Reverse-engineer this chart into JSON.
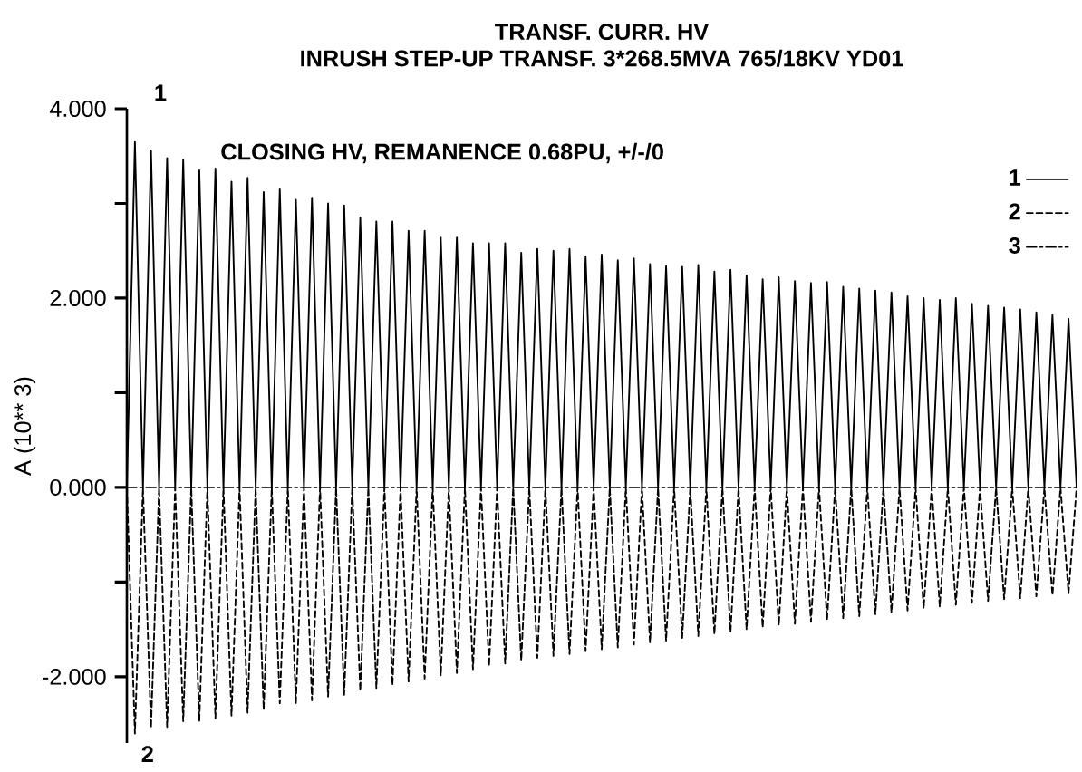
{
  "chart_data": {
    "type": "line",
    "title": "TRANSF. CURR. HV",
    "subtitle": "INRUSH STEP-UP TRANSF. 3*268.5MVA 765/18KV YD01",
    "ylabel": "A (10** 3)",
    "annotations": [
      "1",
      "CLOSING HV, REMANENCE 0.68PU, +/-/0",
      "2"
    ],
    "categories": [
      null,
      null,
      null,
      null,
      null,
      null,
      null,
      null,
      null,
      null,
      null,
      null,
      null,
      null,
      null,
      null,
      null,
      null,
      null,
      null,
      null,
      null,
      null,
      null,
      null,
      null,
      null,
      null,
      null,
      null,
      null,
      null,
      null,
      null,
      null,
      null,
      null,
      null,
      null,
      null,
      null,
      null,
      null,
      null,
      null,
      null,
      null,
      null,
      null,
      null,
      null,
      null,
      null,
      null,
      null,
      null,
      null,
      null,
      null,
      null,
      null,
      null,
      null,
      null,
      null,
      null,
      null,
      null,
      null,
      null,
      null,
      null,
      null,
      null,
      null,
      null,
      null,
      null,
      null,
      null,
      null,
      null,
      null,
      null,
      null,
      null,
      null,
      null,
      null,
      null,
      null,
      null,
      null,
      null,
      null,
      null,
      null,
      null,
      null,
      null,
      null,
      null,
      null,
      null,
      null,
      null,
      null,
      null,
      null,
      null,
      null,
      null,
      null,
      null,
      null,
      null,
      null,
      null,
      null
    ],
    "series": [
      {
        "name": "1",
        "color": "#000000",
        "line_style": "solid",
        "values": [
          0,
          3.65,
          0,
          3.56,
          0,
          3.48,
          0,
          3.46,
          0,
          3.35,
          0,
          3.37,
          0,
          3.23,
          0,
          3.27,
          0,
          3.12,
          0,
          3.15,
          0,
          3.04,
          0,
          3.06,
          0,
          3.0,
          0,
          2.98,
          0,
          2.85,
          0,
          2.81,
          0,
          2.81,
          0,
          2.71,
          0,
          2.71,
          0,
          2.64,
          0,
          2.64,
          0,
          2.58,
          0,
          2.58,
          0,
          2.58,
          0,
          2.48,
          0,
          2.52,
          0,
          2.5,
          0,
          2.52,
          0,
          2.44,
          0,
          2.46,
          0,
          2.4,
          0,
          2.42,
          0,
          2.36,
          0,
          2.34,
          0,
          2.33,
          0,
          2.35,
          0,
          2.28,
          0,
          2.3,
          0,
          2.24,
          0,
          2.2,
          0,
          2.22,
          0,
          2.18,
          0,
          2.16,
          0,
          2.17,
          0,
          2.12,
          0,
          2.1,
          0,
          2.08,
          0,
          2.06,
          0,
          2.02,
          0,
          2.0,
          0,
          1.98,
          0,
          2.0,
          0,
          1.94,
          0,
          1.92,
          0,
          1.9,
          0,
          1.88,
          0,
          1.85,
          0,
          1.82,
          0,
          1.78,
          0
        ]
      },
      {
        "name": "2",
        "color": "#000000",
        "line_style": "dashed",
        "values": [
          0,
          -2.6,
          0,
          -2.54,
          0,
          -2.53,
          0,
          -2.47,
          0,
          -2.47,
          0,
          -2.44,
          0,
          -2.41,
          0,
          -2.38,
          0,
          -2.35,
          0,
          -2.28,
          0,
          -2.28,
          0,
          -2.25,
          0,
          -2.21,
          0,
          -2.19,
          0,
          -2.15,
          0,
          -2.12,
          0,
          -2.09,
          0,
          -2.05,
          0,
          -2.02,
          0,
          -1.99,
          0,
          -1.96,
          0,
          -1.92,
          0,
          -1.89,
          0,
          -1.86,
          0,
          -1.83,
          0,
          -1.8,
          0,
          -1.78,
          0,
          -1.76,
          0,
          -1.73,
          0,
          -1.71,
          0,
          -1.69,
          0,
          -1.66,
          0,
          -1.64,
          0,
          -1.62,
          0,
          -1.59,
          0,
          -1.57,
          0,
          -1.55,
          0,
          -1.53,
          0,
          -1.5,
          0,
          -1.48,
          0,
          -1.46,
          0,
          -1.44,
          0,
          -1.42,
          0,
          -1.4,
          0,
          -1.38,
          0,
          -1.36,
          0,
          -1.34,
          0,
          -1.32,
          0,
          -1.3,
          0,
          -1.28,
          0,
          -1.26,
          0,
          -1.24,
          0,
          -1.22,
          0,
          -1.2,
          0,
          -1.18,
          0,
          -1.17,
          0,
          -1.15,
          0,
          -1.14,
          0,
          -1.12,
          0
        ]
      },
      {
        "name": "3",
        "color": "#000000",
        "line_style": "dashdot",
        "values": [
          0,
          0,
          0,
          0,
          0,
          0,
          0,
          0,
          0,
          0,
          0,
          0,
          0,
          0,
          0,
          0,
          0,
          0,
          0,
          0,
          0,
          0,
          0,
          0,
          0,
          0,
          0,
          0,
          0,
          0,
          0,
          0,
          0,
          0,
          0,
          0,
          0,
          0,
          0,
          0,
          0,
          0,
          0,
          0,
          0,
          0,
          0,
          0,
          0,
          0,
          0,
          0,
          0,
          0,
          0,
          0,
          0,
          0,
          0,
          0,
          0,
          0,
          0,
          0,
          0,
          0,
          0,
          0,
          0,
          0,
          0,
          0,
          0,
          0,
          0,
          0,
          0,
          0,
          0,
          0,
          0,
          0,
          0,
          0,
          0,
          0,
          0,
          0,
          0,
          0,
          0,
          0,
          0,
          0,
          0,
          0,
          0,
          0,
          0,
          0,
          0,
          0,
          0,
          0,
          0,
          0,
          0,
          0,
          0,
          0,
          0,
          0,
          0,
          0,
          0,
          0,
          0,
          0,
          0
        ]
      }
    ],
    "ylim": [
      -2.7,
      4
    ],
    "yticks": [
      {
        "value": 4,
        "label": "4.000"
      },
      {
        "value": 3,
        "label": null
      },
      {
        "value": 2,
        "label": "2.000"
      },
      {
        "value": 1,
        "label": null
      },
      {
        "value": 0,
        "label": "0.000"
      },
      {
        "value": -1,
        "label": null
      },
      {
        "value": -2,
        "label": "-2.000"
      }
    ],
    "tick_labels": "y",
    "grid": false,
    "legend": "top right",
    "marker": "none"
  }
}
